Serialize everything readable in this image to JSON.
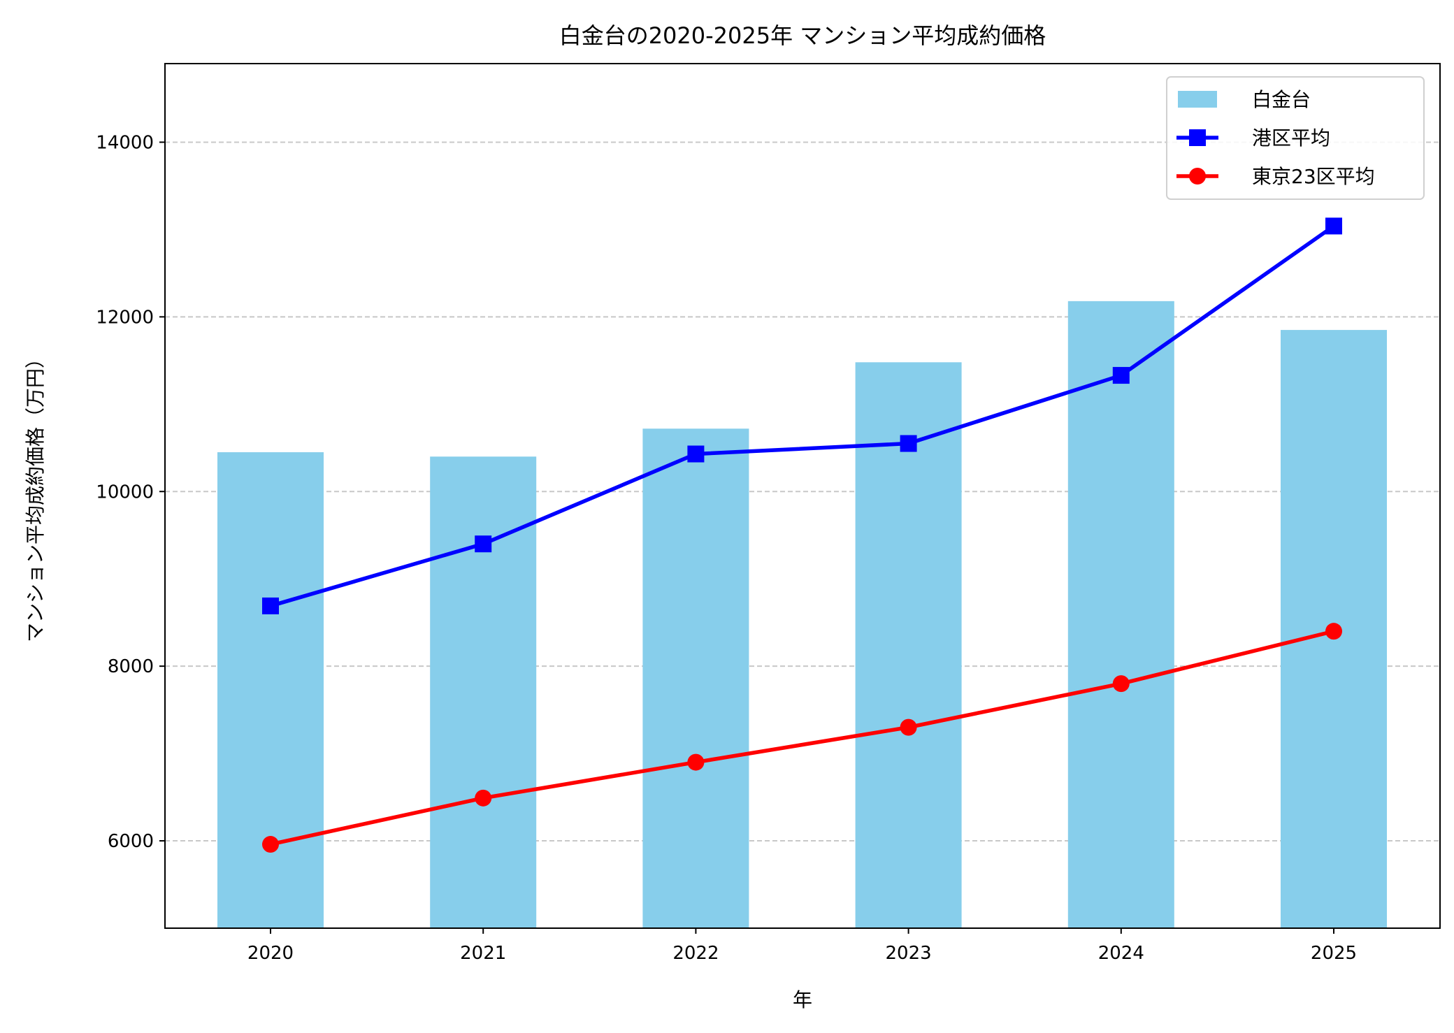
{
  "chart_data": {
    "type": "bar+line",
    "title": "白金台の2020-2025年 マンション平均成約価格",
    "xlabel": "年",
    "ylabel": "マンション平均成約価格（万円）",
    "categories": [
      "2020",
      "2021",
      "2022",
      "2023",
      "2024",
      "2025"
    ],
    "ylim": [
      5000,
      14900
    ],
    "yticks": [
      6000,
      8000,
      10000,
      12000,
      14000
    ],
    "grid": "y-dashed",
    "legend_position": "top-right",
    "series": [
      {
        "name": "白金台",
        "type": "bar",
        "color": "#87ceeb",
        "values": [
          10450,
          10400,
          10720,
          11480,
          12180,
          11850
        ]
      },
      {
        "name": "港区平均",
        "type": "line",
        "marker": "square",
        "color": "#0000ff",
        "values": [
          8690,
          9400,
          10430,
          10550,
          11330,
          13040
        ]
      },
      {
        "name": "東京23区平均",
        "type": "line",
        "marker": "circle",
        "color": "#ff0000",
        "values": [
          5960,
          6490,
          6900,
          7300,
          7800,
          8400
        ]
      }
    ]
  }
}
